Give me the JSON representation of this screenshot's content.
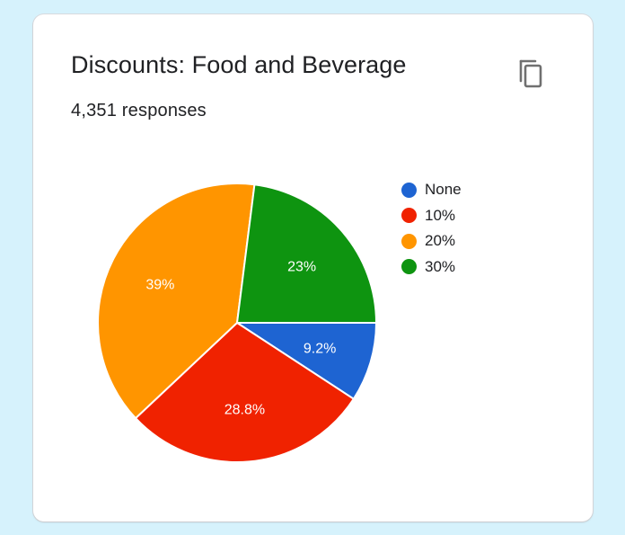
{
  "card": {
    "title": "Discounts: Food and Beverage",
    "responses": "4,351 responses",
    "copy_icon": "copy-icon"
  },
  "colors": {
    "None": "#1e64d2",
    "10%": "#f02200",
    "20%": "#ff9500",
    "30%": "#0e9410",
    "background": "#d6f2fc"
  },
  "chart_data": {
    "type": "pie",
    "categories": [
      "None",
      "10%",
      "20%",
      "30%"
    ],
    "values": [
      9.2,
      28.8,
      39,
      23
    ],
    "labels": [
      "9.2%",
      "28.8%",
      "39%",
      "23%"
    ],
    "colors": [
      "#1e64d2",
      "#f02200",
      "#ff9500",
      "#0e9410"
    ],
    "legend": {
      "placement": "right",
      "entries": [
        "None",
        "10%",
        "20%",
        "30%"
      ]
    }
  }
}
